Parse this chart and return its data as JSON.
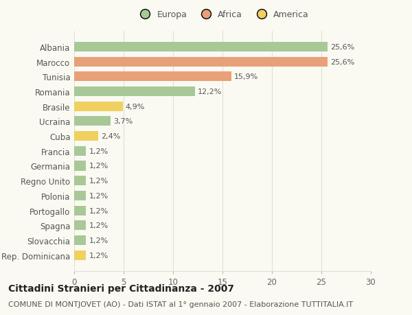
{
  "title": "Cittadini Stranieri per Cittadinanza - 2007",
  "subtitle": "COMUNE DI MONTJOVET (AO) - Dati ISTAT al 1° gennaio 2007 - Elaborazione TUTTITALIA.IT",
  "categories": [
    "Albania",
    "Marocco",
    "Tunisia",
    "Romania",
    "Brasile",
    "Ucraina",
    "Cuba",
    "Francia",
    "Germania",
    "Regno Unito",
    "Polonia",
    "Portogallo",
    "Spagna",
    "Slovacchia",
    "Rep. Dominicana"
  ],
  "values": [
    25.6,
    25.6,
    15.9,
    12.2,
    4.9,
    3.7,
    2.4,
    1.2,
    1.2,
    1.2,
    1.2,
    1.2,
    1.2,
    1.2,
    1.2
  ],
  "labels": [
    "25,6%",
    "25,6%",
    "15,9%",
    "12,2%",
    "4,9%",
    "3,7%",
    "2,4%",
    "1,2%",
    "1,2%",
    "1,2%",
    "1,2%",
    "1,2%",
    "1,2%",
    "1,2%",
    "1,2%"
  ],
  "continents": [
    "Europa",
    "Africa",
    "Africa",
    "Europa",
    "America",
    "Europa",
    "America",
    "Europa",
    "Europa",
    "Europa",
    "Europa",
    "Europa",
    "Europa",
    "Europa",
    "America"
  ],
  "colors": {
    "Europa": "#a8c898",
    "Africa": "#e8a078",
    "America": "#f0d060"
  },
  "legend_order": [
    "Europa",
    "Africa",
    "America"
  ],
  "xlim": [
    0,
    30
  ],
  "xticks": [
    0,
    5,
    10,
    15,
    20,
    25,
    30
  ],
  "background_color": "#fafaf2",
  "grid_color": "#e0e0d0",
  "title_fontsize": 10,
  "subtitle_fontsize": 8,
  "label_fontsize": 8,
  "tick_fontsize": 8.5
}
